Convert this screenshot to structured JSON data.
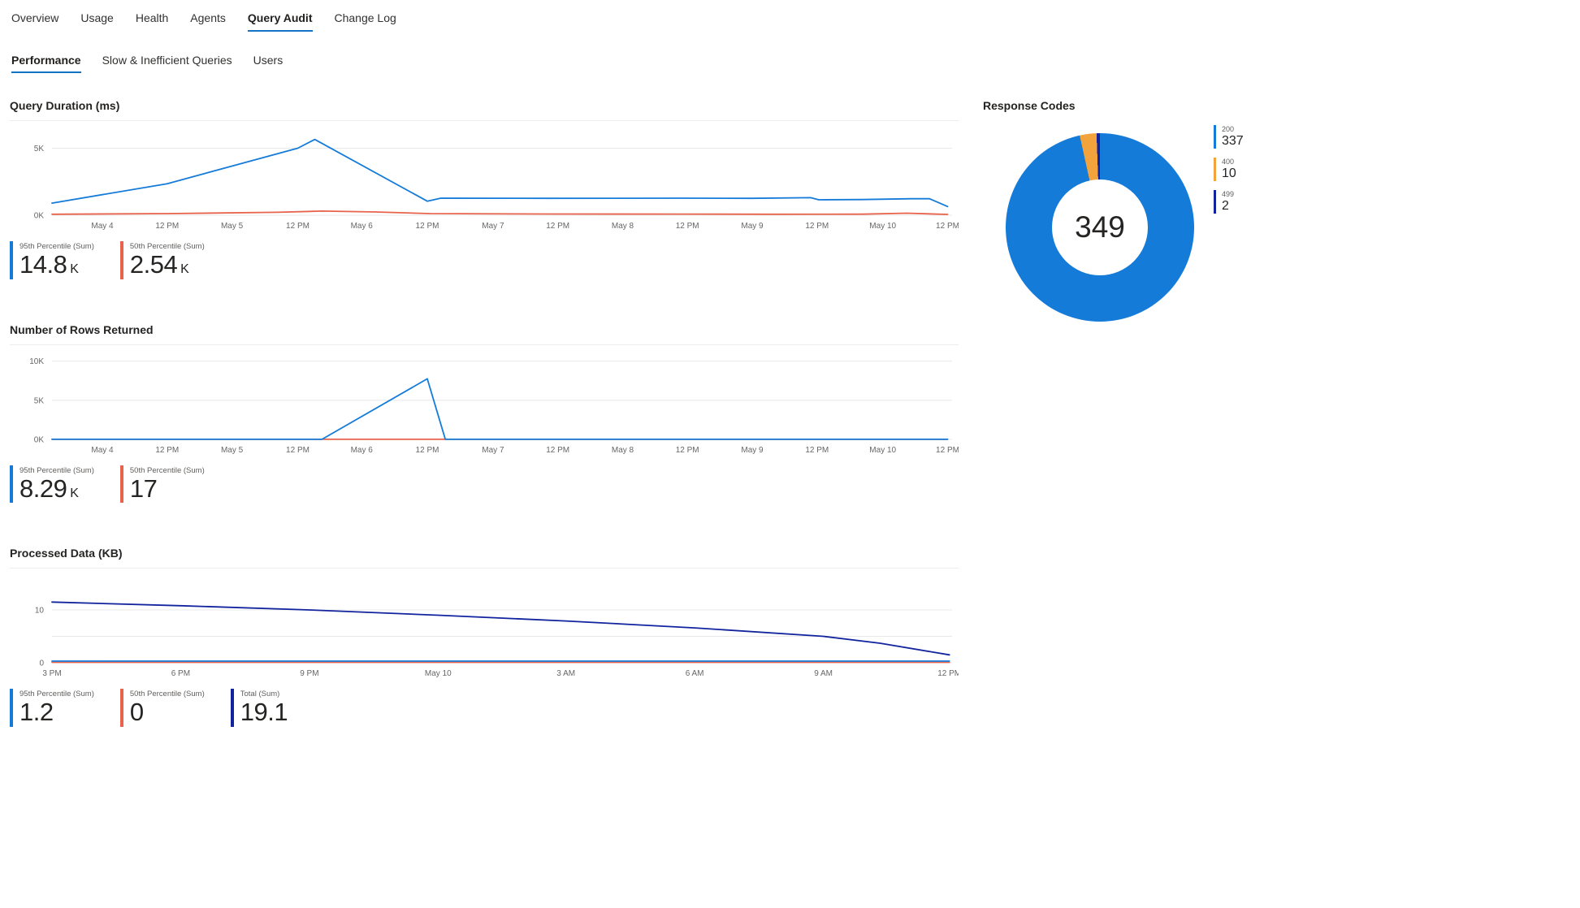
{
  "nav": {
    "items": [
      {
        "label": "Overview",
        "active": false
      },
      {
        "label": "Usage",
        "active": false
      },
      {
        "label": "Health",
        "active": false
      },
      {
        "label": "Agents",
        "active": false
      },
      {
        "label": "Query Audit",
        "active": true
      },
      {
        "label": "Change Log",
        "active": false
      }
    ]
  },
  "subnav": {
    "items": [
      {
        "label": "Performance",
        "active": true
      },
      {
        "label": "Slow & Inefficient Queries",
        "active": false
      },
      {
        "label": "Users",
        "active": false
      }
    ]
  },
  "colors": {
    "accent_blue": "#1373C4",
    "series_blue": "#157BD9",
    "series_orange": "#E8634C",
    "series_navy": "#12239E",
    "donut_orange": "#F2A33C",
    "gridline": "#e8e8e8"
  },
  "chart_data": [
    {
      "type": "line",
      "title": "Query Duration (ms)",
      "ylim": [
        0,
        6300
      ],
      "yticks": [
        {
          "value": 0,
          "label": "0K"
        },
        {
          "value": 5000,
          "label": "5K"
        }
      ],
      "xticks": [
        {
          "position": 0.056,
          "label": "May 4"
        },
        {
          "position": 0.128,
          "label": "12 PM"
        },
        {
          "position": 0.2,
          "label": "May 5"
        },
        {
          "position": 0.273,
          "label": "12 PM"
        },
        {
          "position": 0.344,
          "label": "May 6"
        },
        {
          "position": 0.417,
          "label": "12 PM"
        },
        {
          "position": 0.49,
          "label": "May 7"
        },
        {
          "position": 0.562,
          "label": "12 PM"
        },
        {
          "position": 0.634,
          "label": "May 8"
        },
        {
          "position": 0.706,
          "label": "12 PM"
        },
        {
          "position": 0.778,
          "label": "May 9"
        },
        {
          "position": 0.85,
          "label": "12 PM"
        },
        {
          "position": 0.923,
          "label": "May 10"
        },
        {
          "position": 0.995,
          "label": "12 PM"
        }
      ],
      "series": [
        {
          "name": "95th Percentile (Sum)",
          "color": "#157BD9",
          "points": [
            [
              0,
              900
            ],
            [
              0.128,
              2350
            ],
            [
              0.273,
              5000
            ],
            [
              0.292,
              5650
            ],
            [
              0.417,
              1050
            ],
            [
              0.432,
              1270
            ],
            [
              0.55,
              1260
            ],
            [
              0.7,
              1270
            ],
            [
              0.778,
              1260
            ],
            [
              0.843,
              1310
            ],
            [
              0.852,
              1150
            ],
            [
              0.9,
              1170
            ],
            [
              0.955,
              1230
            ],
            [
              0.975,
              1230
            ],
            [
              0.995,
              650
            ]
          ]
        },
        {
          "name": "50th Percentile (Sum)",
          "color": "#E8634C",
          "points": [
            [
              0,
              70
            ],
            [
              0.13,
              120
            ],
            [
              0.25,
              220
            ],
            [
              0.3,
              310
            ],
            [
              0.36,
              240
            ],
            [
              0.42,
              120
            ],
            [
              0.55,
              90
            ],
            [
              0.7,
              85
            ],
            [
              0.8,
              70
            ],
            [
              0.9,
              80
            ],
            [
              0.95,
              150
            ],
            [
              0.995,
              60
            ]
          ]
        }
      ],
      "totals": [
        {
          "label": "95th Percentile (Sum)",
          "value": "14.8",
          "suffix": "K",
          "color": "#157BD9"
        },
        {
          "label": "50th Percentile (Sum)",
          "value": "2.54",
          "suffix": "K",
          "color": "#E8634C"
        }
      ]
    },
    {
      "type": "line",
      "title": "Number of Rows Returned",
      "ylim": [
        0,
        10800
      ],
      "yticks": [
        {
          "value": 0,
          "label": "0K"
        },
        {
          "value": 5000,
          "label": "5K"
        },
        {
          "value": 10000,
          "label": "10K"
        }
      ],
      "xticks": [
        {
          "position": 0.056,
          "label": "May 4"
        },
        {
          "position": 0.128,
          "label": "12 PM"
        },
        {
          "position": 0.2,
          "label": "May 5"
        },
        {
          "position": 0.273,
          "label": "12 PM"
        },
        {
          "position": 0.344,
          "label": "May 6"
        },
        {
          "position": 0.417,
          "label": "12 PM"
        },
        {
          "position": 0.49,
          "label": "May 7"
        },
        {
          "position": 0.562,
          "label": "12 PM"
        },
        {
          "position": 0.634,
          "label": "May 8"
        },
        {
          "position": 0.706,
          "label": "12 PM"
        },
        {
          "position": 0.778,
          "label": "May 9"
        },
        {
          "position": 0.85,
          "label": "12 PM"
        },
        {
          "position": 0.923,
          "label": "May 10"
        },
        {
          "position": 0.995,
          "label": "12 PM"
        }
      ],
      "series": [
        {
          "name": "50th Percentile (Sum)",
          "color": "#E8634C",
          "points": [
            [
              0,
              8
            ],
            [
              0.995,
              8
            ]
          ]
        },
        {
          "name": "95th Percentile (Sum)",
          "color": "#157BD9",
          "points": [
            [
              0,
              15
            ],
            [
              0.3,
              15
            ],
            [
              0.417,
              7750
            ],
            [
              0.437,
              15
            ],
            [
              0.995,
              15
            ]
          ]
        }
      ],
      "totals": [
        {
          "label": "95th Percentile (Sum)",
          "value": "8.29",
          "suffix": "K",
          "color": "#157BD9"
        },
        {
          "label": "50th Percentile (Sum)",
          "value": "17",
          "suffix": "",
          "color": "#E8634C"
        }
      ]
    },
    {
      "type": "line",
      "title": "Processed Data (KB)",
      "ylim": [
        0,
        16
      ],
      "yticks": [
        {
          "value": 0,
          "label": "0"
        },
        {
          "value": 5,
          "label": ""
        },
        {
          "value": 10,
          "label": "10"
        }
      ],
      "xticks": [
        {
          "position": 0.0,
          "label": "3 PM"
        },
        {
          "position": 0.143,
          "label": "6 PM"
        },
        {
          "position": 0.286,
          "label": "9 PM"
        },
        {
          "position": 0.429,
          "label": "May 10"
        },
        {
          "position": 0.571,
          "label": "3 AM"
        },
        {
          "position": 0.714,
          "label": "6 AM"
        },
        {
          "position": 0.857,
          "label": "9 AM"
        },
        {
          "position": 0.997,
          "label": "12 PM"
        }
      ],
      "series": [
        {
          "name": "50th Percentile (Sum)",
          "color": "#E8634C",
          "points": [
            [
              0,
              0.08
            ],
            [
              0.997,
              0.08
            ]
          ]
        },
        {
          "name": "95th Percentile (Sum)",
          "color": "#157BD9",
          "points": [
            [
              0,
              0.3
            ],
            [
              0.997,
              0.3
            ]
          ]
        },
        {
          "name": "Total (Sum)",
          "color": "#12239E",
          "points": [
            [
              0,
              11.5
            ],
            [
              0.143,
              10.8
            ],
            [
              0.286,
              10.0
            ],
            [
              0.429,
              9.0
            ],
            [
              0.571,
              7.9
            ],
            [
              0.714,
              6.6
            ],
            [
              0.857,
              5.0
            ],
            [
              0.92,
              3.7
            ],
            [
              0.997,
              1.5
            ]
          ]
        }
      ],
      "totals": [
        {
          "label": "95th Percentile (Sum)",
          "value": "1.2",
          "suffix": "",
          "color": "#157BD9"
        },
        {
          "label": "50th Percentile (Sum)",
          "value": "0",
          "suffix": "",
          "color": "#E8634C"
        },
        {
          "label": "Total (Sum)",
          "value": "19.1",
          "suffix": "",
          "color": "#12239E"
        }
      ]
    },
    {
      "type": "donut",
      "title": "Response Codes",
      "total": 349,
      "slices": [
        {
          "label": "200",
          "value": 337,
          "color": "#157BD9"
        },
        {
          "label": "400",
          "value": 10,
          "color": "#F2A33C"
        },
        {
          "label": "499",
          "value": 2,
          "color": "#12239E"
        }
      ]
    }
  ]
}
